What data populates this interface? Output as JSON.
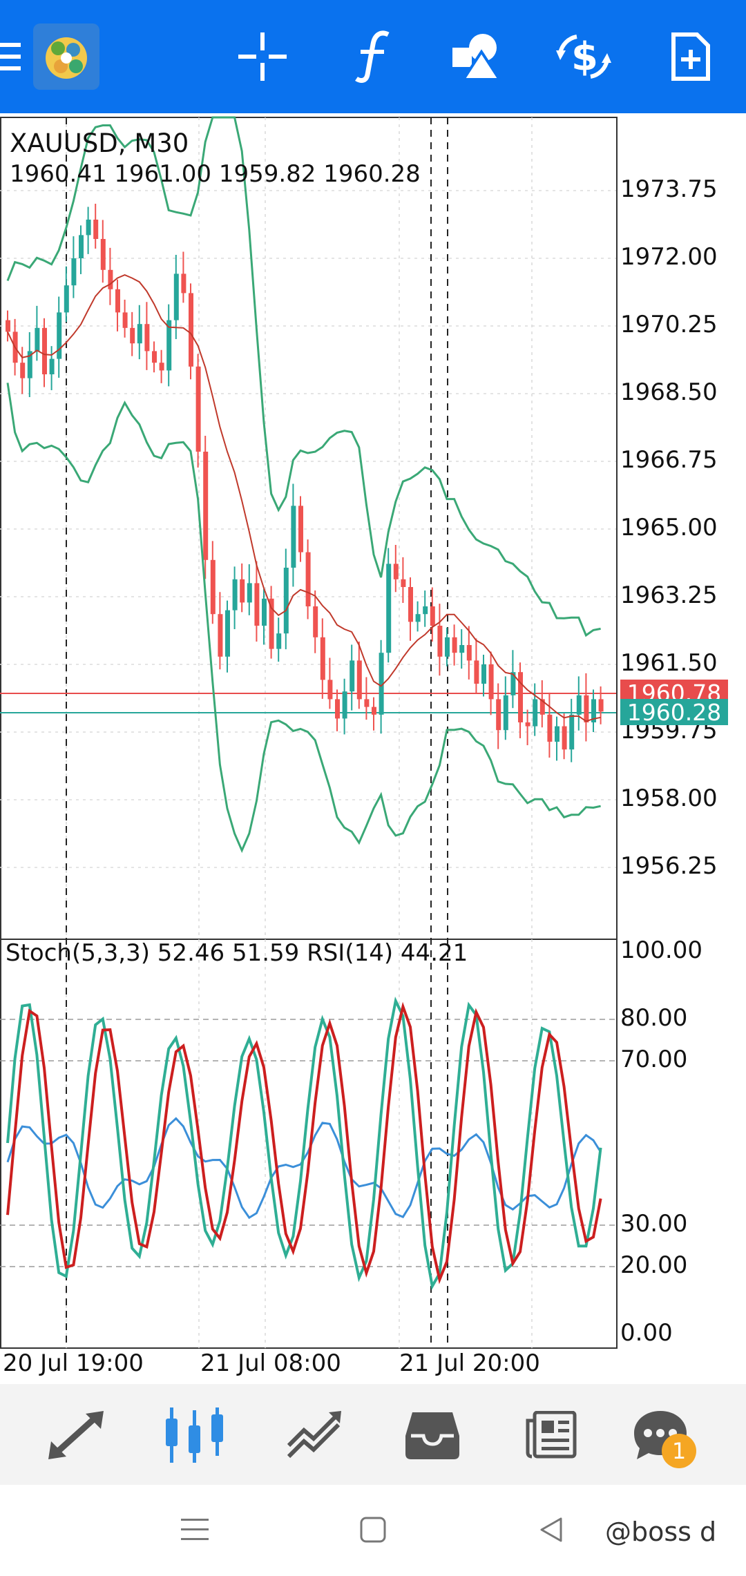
{
  "topbar": {
    "icons": [
      "menu-icon",
      "app-logo-icon",
      "crosshair-icon",
      "indicators-icon",
      "objects-icon",
      "trade-icon",
      "new-order-icon"
    ]
  },
  "chart": {
    "symbol": "XAUUSD, M30",
    "ohlc": "1960.41 1961.00 1959.82 1960.28",
    "indicator_label": "Stoch(5,3,3) 52.46 51.59 RSI(14) 44.21",
    "price_axis": [
      "1973.75",
      "1972.00",
      "1970.25",
      "1968.50",
      "1966.75",
      "1965.00",
      "1963.25",
      "1961.50",
      "1959.75",
      "1958.00",
      "1956.25"
    ],
    "ask_price": "1960.78",
    "bid_price": "1960.28",
    "ask_color": "#e84c4c",
    "bid_color": "#26a69a",
    "osc_axis": [
      "100.00",
      "80.00",
      "70.00",
      "30.00",
      "20.00",
      "0.00"
    ],
    "time_axis": [
      "20 Jul 19:00",
      "21 Jul 08:00",
      "21 Jul 20:00"
    ]
  },
  "bottomnav": {
    "items": [
      "quotes-icon",
      "chart-icon",
      "trade-icon",
      "history-icon",
      "news-icon",
      "messages-icon"
    ],
    "active": "chart-icon",
    "badge": "1"
  },
  "sysnav": {
    "watermark": "@boss d"
  }
}
